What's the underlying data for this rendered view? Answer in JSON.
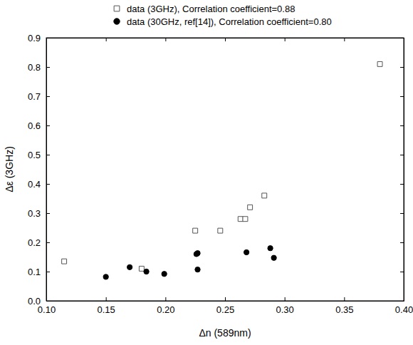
{
  "chart_data": {
    "type": "scatter",
    "x_label": "Δn (589nm)",
    "y_label": "Δε (3GHz)",
    "xlim": [
      0.1,
      0.4
    ],
    "ylim": [
      0.0,
      0.9
    ],
    "xticks": [
      {
        "value": 0.1,
        "label": "0.10"
      },
      {
        "value": 0.15,
        "label": "0.15"
      },
      {
        "value": 0.2,
        "label": "0.20"
      },
      {
        "value": 0.25,
        "label": "0.25"
      },
      {
        "value": 0.3,
        "label": "0.30"
      },
      {
        "value": 0.35,
        "label": "0.35"
      },
      {
        "value": 0.4,
        "label": "0.40"
      }
    ],
    "yticks": [
      {
        "value": 0.0,
        "label": "0.0"
      },
      {
        "value": 0.1,
        "label": "0.1"
      },
      {
        "value": 0.2,
        "label": "0.2"
      },
      {
        "value": 0.3,
        "label": "0.3"
      },
      {
        "value": 0.4,
        "label": "0.4"
      },
      {
        "value": 0.5,
        "label": "0.5"
      },
      {
        "value": 0.6,
        "label": "0.6"
      },
      {
        "value": 0.7,
        "label": "0.7"
      },
      {
        "value": 0.8,
        "label": "0.8"
      },
      {
        "value": 0.9,
        "label": "0.9"
      }
    ],
    "legend": "top",
    "series": [
      {
        "name": "data (3GHz), Correlation coefficient=0.88",
        "color": "#555555",
        "marker": "square-open",
        "x": [
          0.115,
          0.18,
          0.225,
          0.246,
          0.263,
          0.267,
          0.271,
          0.283,
          0.38
        ],
        "values": [
          0.135,
          0.11,
          0.24,
          0.24,
          0.28,
          0.28,
          0.32,
          0.36,
          0.81
        ]
      },
      {
        "name": "data (30GHz, ref[14]), Correlation coefficient=0.80",
        "color": "#000000",
        "marker": "circle",
        "x": [
          0.15,
          0.17,
          0.184,
          0.199,
          0.226,
          0.227,
          0.227,
          0.268,
          0.288,
          0.291
        ],
        "values": [
          0.082,
          0.115,
          0.1,
          0.092,
          0.16,
          0.163,
          0.107,
          0.166,
          0.18,
          0.147
        ]
      }
    ]
  }
}
